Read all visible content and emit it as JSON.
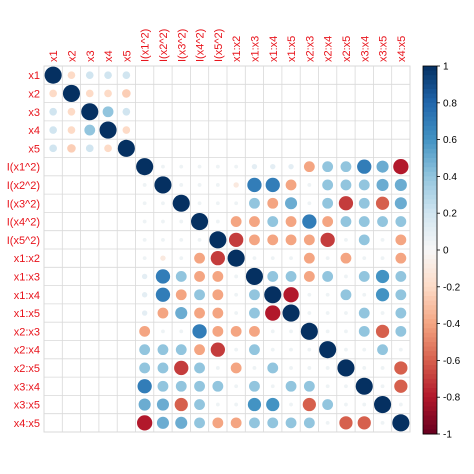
{
  "chart_data": {
    "type": "heatmap",
    "title": "",
    "labels": [
      "x1",
      "x2",
      "x3",
      "x4",
      "x5",
      "I(x1^2)",
      "I(x2^2)",
      "I(x3^2)",
      "I(x4^2)",
      "I(x5^2)",
      "x1:x2",
      "x1:x3",
      "x1:x4",
      "x1:x5",
      "x2:x3",
      "x2:x4",
      "x2:x5",
      "x3:x4",
      "x3:x5",
      "x4:x5"
    ],
    "label_color": "#e8131b",
    "colorbar": {
      "range": [
        -1,
        1
      ],
      "ticks": [
        "1",
        "0.8",
        "0.6",
        "0.4",
        "0.2",
        "0",
        "-0.2",
        "-0.4",
        "-0.6",
        "-0.8",
        "-1"
      ],
      "tick_values": [
        1,
        0.8,
        0.6,
        0.4,
        0.2,
        0,
        -0.2,
        -0.4,
        -0.6,
        -0.8,
        -1
      ]
    },
    "palette": {
      "neg": "#67001f",
      "mid": "#f7f7f7",
      "pos": "#053061"
    },
    "grid": true,
    "legend": "right",
    "values": [
      [
        1,
        -0.2,
        0.2,
        0.2,
        0.2,
        0,
        0,
        0,
        0,
        0,
        0,
        0,
        0,
        0,
        0,
        0,
        0,
        0,
        0,
        0
      ],
      [
        -0.2,
        1,
        -0.2,
        -0.2,
        -0.25,
        0,
        0,
        0,
        0,
        0,
        0,
        0,
        0,
        0,
        0,
        0,
        0,
        0,
        0,
        0
      ],
      [
        0.2,
        -0.2,
        1,
        0.4,
        0.2,
        0,
        0,
        0,
        0,
        0,
        0,
        0,
        0,
        0,
        0,
        0,
        0,
        0,
        0,
        0
      ],
      [
        0.2,
        -0.2,
        0.4,
        1,
        -0.2,
        0,
        0,
        0,
        0,
        0,
        0,
        0,
        0,
        0,
        0,
        0,
        0,
        0,
        0,
        0
      ],
      [
        0.2,
        -0.25,
        0.2,
        -0.2,
        1,
        0,
        0,
        0,
        0,
        0,
        0,
        0,
        0,
        0,
        0,
        0,
        0,
        0,
        0,
        0
      ],
      [
        0,
        0,
        0,
        0,
        0,
        1,
        0.05,
        0.05,
        0.05,
        0.05,
        0.05,
        0.1,
        0.1,
        0.1,
        -0.4,
        0.4,
        0.4,
        0.7,
        0.5,
        -0.8
      ],
      [
        0,
        0,
        0,
        0,
        0,
        0.05,
        1,
        0.05,
        0.05,
        0.05,
        -0.1,
        0.7,
        0.7,
        -0.4,
        0.05,
        0.4,
        0.4,
        0.4,
        0.5,
        0.5
      ],
      [
        0,
        0,
        0,
        0,
        0,
        0.05,
        0.05,
        1,
        0.05,
        0.05,
        0.05,
        0.4,
        -0.4,
        0.5,
        0.05,
        0.4,
        -0.7,
        0.4,
        -0.6,
        0.5
      ],
      [
        0,
        0,
        0,
        0,
        0,
        0.05,
        0.05,
        0.05,
        1,
        0.05,
        -0.4,
        -0.4,
        0.4,
        -0.4,
        0.7,
        -0.4,
        0.4,
        0.4,
        0.4,
        0.4
      ],
      [
        0,
        0,
        0,
        0,
        0,
        0.05,
        0.05,
        0.05,
        0.05,
        1,
        -0.7,
        -0.4,
        -0.4,
        -0.4,
        -0.4,
        -0.7,
        0.05,
        0.4,
        0.05,
        -0.4
      ],
      [
        0,
        0,
        0,
        0,
        0,
        0.05,
        -0.1,
        0.05,
        -0.4,
        -0.7,
        1,
        0.05,
        0.05,
        0.05,
        -0.4,
        0.05,
        -0.4,
        0.05,
        0.05,
        -0.4
      ],
      [
        0,
        0,
        0,
        0,
        0,
        0.1,
        0.7,
        0.4,
        -0.4,
        -0.4,
        0.05,
        1,
        0.4,
        0.4,
        -0.4,
        0.4,
        0.05,
        0.4,
        0.6,
        0.4
      ],
      [
        0,
        0,
        0,
        0,
        0,
        0.1,
        0.7,
        -0.4,
        0.4,
        -0.4,
        0.05,
        0.4,
        1,
        -0.8,
        0.05,
        0.05,
        0.4,
        0.05,
        0.6,
        0.4
      ],
      [
        0,
        0,
        0,
        0,
        0,
        0.1,
        -0.4,
        0.5,
        -0.4,
        -0.4,
        0.05,
        0.4,
        -0.8,
        1,
        0.05,
        0.05,
        0.05,
        0.4,
        0.05,
        0.4
      ],
      [
        0,
        0,
        0,
        0,
        0,
        -0.4,
        0.05,
        0.05,
        0.7,
        -0.4,
        -0.4,
        -0.4,
        0.05,
        0.05,
        1,
        0.05,
        0.05,
        0.4,
        -0.6,
        0.4
      ],
      [
        0,
        0,
        0,
        0,
        0,
        0.4,
        0.4,
        0.4,
        -0.4,
        -0.7,
        0.05,
        0.4,
        0.05,
        0.05,
        0.05,
        1,
        0.05,
        0.05,
        0.4,
        0.05
      ],
      [
        0,
        0,
        0,
        0,
        0,
        0.4,
        0.4,
        -0.7,
        0.4,
        0.05,
        -0.4,
        0.05,
        0.4,
        0.05,
        0.05,
        0.05,
        1,
        0.05,
        0.05,
        -0.6
      ],
      [
        0,
        0,
        0,
        0,
        0,
        0.7,
        0.4,
        0.4,
        0.4,
        0.4,
        0.05,
        0.4,
        0.05,
        0.4,
        0.4,
        0.05,
        0.05,
        1,
        0.05,
        -0.6
      ],
      [
        0,
        0,
        0,
        0,
        0,
        0.5,
        0.5,
        -0.6,
        0.4,
        0.05,
        0.05,
        0.6,
        0.6,
        0.05,
        -0.6,
        0.4,
        0.05,
        0.05,
        1,
        0.05
      ],
      [
        0,
        0,
        0,
        0,
        0,
        -0.8,
        0.5,
        0.5,
        0.4,
        -0.4,
        -0.4,
        0.4,
        0.4,
        0.4,
        0.4,
        0.05,
        -0.6,
        -0.6,
        0.05,
        1
      ]
    ]
  }
}
